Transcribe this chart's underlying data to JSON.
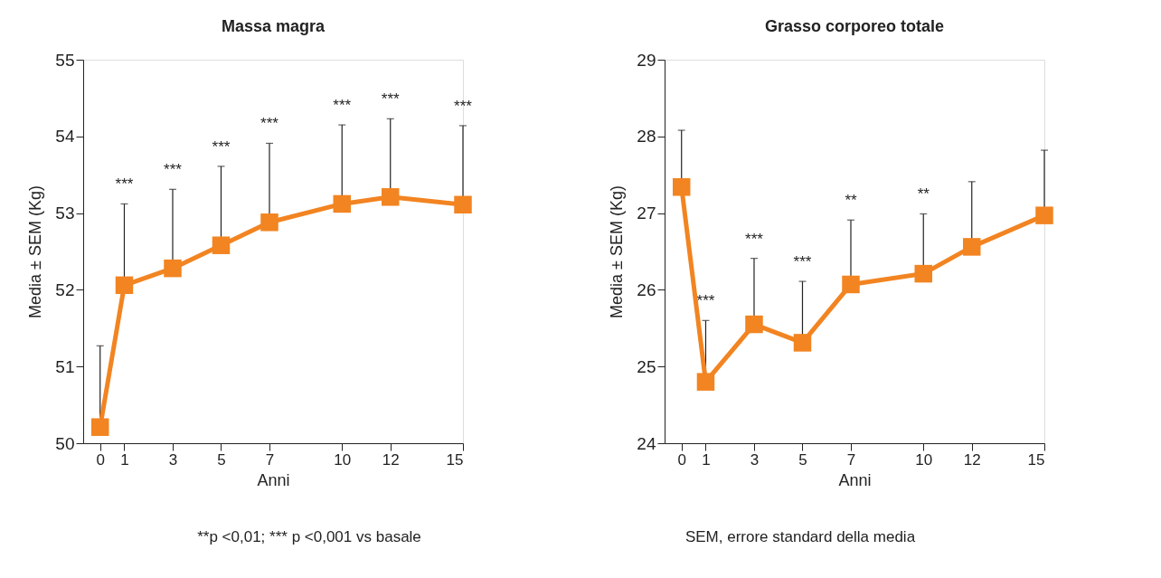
{
  "chart_data": [
    {
      "type": "line",
      "title": "Massa magra",
      "xlabel": "Anni",
      "ylabel": "Media ± SEM (Kg)",
      "x": [
        0,
        1,
        3,
        5,
        7,
        10,
        12,
        15
      ],
      "series": [
        {
          "color": "#f28421",
          "values": [
            50.21,
            52.06,
            52.28,
            52.58,
            52.88,
            53.12,
            53.21,
            53.11
          ],
          "errors": [
            [
              50.21,
              51.27
            ],
            [
              52.06,
              53.12
            ],
            [
              52.28,
              53.31
            ],
            [
              52.58,
              53.61
            ],
            [
              52.88,
              53.91
            ],
            [
              53.12,
              54.15
            ],
            [
              53.21,
              54.23
            ],
            [
              53.11,
              54.14
            ]
          ]
        }
      ],
      "xlim": [
        -0.7,
        15
      ],
      "xticks": [
        0,
        1,
        3,
        5,
        7,
        10,
        12,
        15
      ],
      "ylim": [
        50,
        55
      ],
      "yticks": [
        50,
        51,
        52,
        53,
        54,
        55
      ],
      "marker": "square",
      "line_style": "solid",
      "grid": false,
      "annotations": [
        "***",
        "***",
        "***",
        "***",
        "***",
        "***",
        "***",
        "**p <0,01; *** p <0,001 vs basale"
      ]
    },
    {
      "type": "line",
      "title": "Grasso corporeo totale",
      "xlabel": "Anni",
      "ylabel": "Media ± SEM (Kg)",
      "x": [
        0,
        1,
        3,
        5,
        7,
        10,
        12,
        15
      ],
      "series": [
        {
          "color": "#f28421",
          "values": [
            27.34,
            24.8,
            25.55,
            25.31,
            26.07,
            26.21,
            26.56,
            26.97
          ],
          "errors": [
            [
              27.34,
              28.08
            ],
            [
              24.8,
              25.6
            ],
            [
              25.55,
              26.41
            ],
            [
              25.31,
              26.11
            ],
            [
              26.07,
              26.91
            ],
            [
              26.21,
              26.99
            ],
            [
              26.56,
              27.41
            ],
            [
              26.97,
              27.82
            ]
          ]
        }
      ],
      "xlim": [
        -0.7,
        15
      ],
      "xticks": [
        0,
        1,
        3,
        5,
        7,
        10,
        12,
        15
      ],
      "ylim": [
        24,
        29
      ],
      "yticks": [
        24,
        25,
        26,
        27,
        28,
        29
      ],
      "marker": "square",
      "line_style": "solid",
      "grid": false,
      "annotations": [
        "***",
        "***",
        "***",
        "**",
        "**",
        "SEM, errore standard della media"
      ]
    }
  ]
}
